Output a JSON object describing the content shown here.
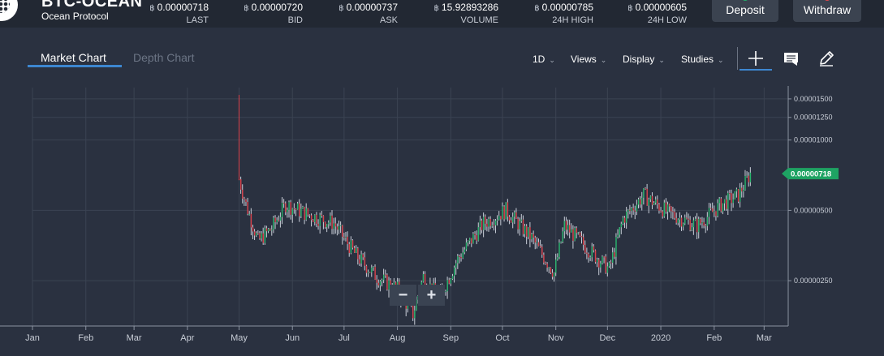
{
  "market": {
    "title": "BTC-OCEAN",
    "subtitle": "Ocean Protocol"
  },
  "stats": [
    {
      "value": "0.00000718",
      "label": "LAST"
    },
    {
      "value": "0.00000720",
      "label": "BID"
    },
    {
      "value": "0.00000737",
      "label": "ASK"
    },
    {
      "value": "15.92893286",
      "label": "VOLUME"
    },
    {
      "value": "0.00000785",
      "label": "24H HIGH"
    },
    {
      "value": "0.00000605",
      "label": "24H LOW"
    }
  ],
  "currency_symbol": "฿",
  "buttons": {
    "deposit": "Deposit",
    "withdraw": "Withdraw"
  },
  "tabs": {
    "market_chart": "Market Chart",
    "depth_chart": "Depth Chart"
  },
  "toolbar": {
    "interval": "1D",
    "views": "Views",
    "display": "Display",
    "studies": "Studies"
  },
  "icons": {
    "crosshair": "crosshair-icon",
    "comment": "comment-icon",
    "draw": "pencil-icon"
  },
  "zoom": {
    "out": "−",
    "in": "+"
  },
  "colors": {
    "up": "#26b36b",
    "down": "#d9404a",
    "deposit_dot": "#21b36b",
    "withdraw_dot": "#e5484d",
    "accent": "#3d87d1"
  },
  "chart_data": {
    "type": "candlestick",
    "yscale": "log",
    "ylim": [
      1.6e-06,
      1.65e-05
    ],
    "y_ticks": [
      "0.00001500",
      "0.00001250",
      "0.00001000",
      "0.00000500",
      "0.00000250"
    ],
    "y_tick_values": [
      1.5e-05,
      1.25e-05,
      1e-05,
      5e-06,
      2.5e-06
    ],
    "last_price_label": "0.00000718",
    "last_price": 7.18e-06,
    "x_ticks": [
      "Jan",
      "Feb",
      "Mar",
      "Apr",
      "May",
      "Jun",
      "Jul",
      "Aug",
      "Sep",
      "Oct",
      "Nov",
      "Dec",
      "2020",
      "Feb",
      "Mar"
    ],
    "x_start": "2019-01-01",
    "x_end": "2020-03-15",
    "series_keypoints": [
      [
        "2019-05-01",
        6.8e-06
      ],
      [
        "2019-05-05",
        5.3e-06
      ],
      [
        "2019-05-12",
        3.7e-06
      ],
      [
        "2019-05-20",
        4.2e-06
      ],
      [
        "2019-05-28",
        5.3e-06
      ],
      [
        "2019-06-10",
        4.8e-06
      ],
      [
        "2019-06-25",
        4.4e-06
      ],
      [
        "2019-07-08",
        3.2e-06
      ],
      [
        "2019-07-20",
        2.6e-06
      ],
      [
        "2019-08-01",
        2.3e-06
      ],
      [
        "2019-08-10",
        1.8e-06
      ],
      [
        "2019-08-16",
        2.6e-06
      ],
      [
        "2019-08-25",
        2.1e-06
      ],
      [
        "2019-09-05",
        3.1e-06
      ],
      [
        "2019-09-20",
        4.4e-06
      ],
      [
        "2019-10-03",
        5e-06
      ],
      [
        "2019-10-18",
        3.8e-06
      ],
      [
        "2019-10-31",
        2.7e-06
      ],
      [
        "2019-11-06",
        4.3e-06
      ],
      [
        "2019-11-20",
        3.4e-06
      ],
      [
        "2019-12-02",
        2.8e-06
      ],
      [
        "2019-12-10",
        4.6e-06
      ],
      [
        "2019-12-22",
        5.8e-06
      ],
      [
        "2020-01-05",
        4.9e-06
      ],
      [
        "2020-01-22",
        4.3e-06
      ],
      [
        "2020-02-05",
        5.3e-06
      ],
      [
        "2020-02-15",
        5.8e-06
      ],
      [
        "2020-02-22",
        7.2e-06
      ]
    ],
    "spike": {
      "date": "2019-05-01",
      "high": 1.56e-05
    }
  }
}
